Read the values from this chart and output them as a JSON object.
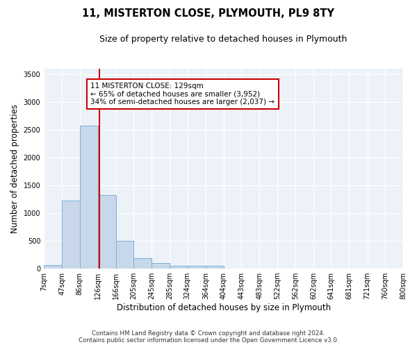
{
  "title": "11, MISTERTON CLOSE, PLYMOUTH, PL9 8TY",
  "subtitle": "Size of property relative to detached houses in Plymouth",
  "xlabel": "Distribution of detached houses by size in Plymouth",
  "ylabel": "Number of detached properties",
  "bar_color": "#c8d8ea",
  "bar_edge_color": "#7aafd4",
  "background_color": "#edf2f9",
  "grid_color": "#ffffff",
  "annotation_line_color": "#cc0000",
  "annotation_box_color": "#cc0000",
  "footer_line1": "Contains HM Land Registry data © Crown copyright and database right 2024.",
  "footer_line2": "Contains public sector information licensed under the Open Government Licence v3.0.",
  "annotation_text_line1": "11 MISTERTON CLOSE: 129sqm",
  "annotation_text_line2": "← 65% of detached houses are smaller (3,952)",
  "annotation_text_line3": "34% of semi-detached houses are larger (2,037) →",
  "property_size_sqm": 129,
  "bin_edges": [
    7,
    47,
    86,
    126,
    166,
    205,
    245,
    285,
    324,
    364,
    404,
    443,
    483,
    522,
    562,
    602,
    641,
    681,
    721,
    760,
    800
  ],
  "bin_counts": [
    60,
    1220,
    2580,
    1330,
    500,
    190,
    100,
    55,
    50,
    55,
    0,
    0,
    0,
    0,
    0,
    0,
    0,
    0,
    0,
    0
  ],
  "tick_labels": [
    "7sqm",
    "47sqm",
    "86sqm",
    "126sqm",
    "166sqm",
    "205sqm",
    "245sqm",
    "285sqm",
    "324sqm",
    "364sqm",
    "404sqm",
    "443sqm",
    "483sqm",
    "522sqm",
    "562sqm",
    "602sqm",
    "641sqm",
    "681sqm",
    "721sqm",
    "760sqm",
    "800sqm"
  ],
  "ylim": [
    0,
    3600
  ],
  "yticks": [
    0,
    500,
    1000,
    1500,
    2000,
    2500,
    3000,
    3500
  ]
}
